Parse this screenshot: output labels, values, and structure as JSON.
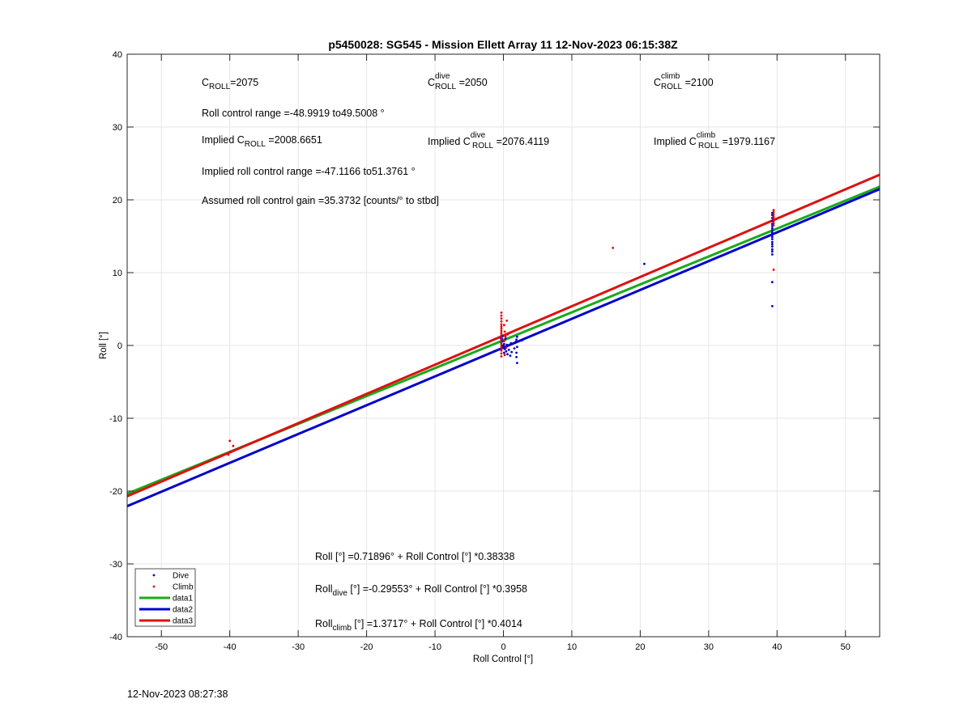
{
  "chart_data": {
    "type": "scatter",
    "title": "p5450028: SG545 - Mission Ellett Array 11 12-Nov-2023 06:15:38Z",
    "xlabel": "Roll Control [°]",
    "ylabel": "Roll [°]",
    "xlim": [
      -55,
      55
    ],
    "ylim": [
      -40,
      40
    ],
    "xticks": [
      -50,
      -40,
      -30,
      -20,
      -10,
      0,
      10,
      20,
      30,
      40,
      50
    ],
    "yticks": [
      -40,
      -30,
      -20,
      -10,
      0,
      10,
      20,
      30,
      40
    ],
    "grid": true,
    "legend_position": "bottom-left",
    "series": [
      {
        "name": "Dive",
        "kind": "points",
        "color": "#0000cc",
        "points": [
          [
            -0.3,
            0.4
          ],
          [
            -0.2,
            -0.1
          ],
          [
            -0.1,
            0.6
          ],
          [
            0.0,
            -0.3
          ],
          [
            0.1,
            0.2
          ],
          [
            0.2,
            -0.5
          ],
          [
            0.3,
            0.9
          ],
          [
            0.4,
            -0.8
          ],
          [
            0.5,
            0.1
          ],
          [
            -0.4,
            1.0
          ],
          [
            0.6,
            -1.2
          ],
          [
            0.0,
            0.0
          ],
          [
            0.8,
            -0.6
          ],
          [
            1.0,
            -1.4
          ],
          [
            1.1,
            0.3
          ],
          [
            1.2,
            -0.9
          ],
          [
            1.6,
            -0.4
          ],
          [
            1.8,
            0.5
          ],
          [
            1.9,
            -1.6
          ],
          [
            2.0,
            -2.4
          ],
          [
            2.0,
            1.2
          ],
          [
            1.9,
            0.8
          ],
          [
            2.0,
            -0.2
          ],
          [
            1.9,
            -1.0
          ],
          [
            2.7,
            0.7
          ],
          [
            -0.2,
            0.9
          ],
          [
            0.1,
            -1.0
          ],
          [
            -0.1,
            1.3
          ],
          [
            20.6,
            11.2
          ],
          [
            39.3,
            18.2
          ],
          [
            39.3,
            17.9
          ],
          [
            39.3,
            17.5
          ],
          [
            39.3,
            17.1
          ],
          [
            39.3,
            16.7
          ],
          [
            39.3,
            16.4
          ],
          [
            39.3,
            16.1
          ],
          [
            39.3,
            15.8
          ],
          [
            39.3,
            15.5
          ],
          [
            39.3,
            15.2
          ],
          [
            39.3,
            14.9
          ],
          [
            39.3,
            14.6
          ],
          [
            39.3,
            14.2
          ],
          [
            39.3,
            13.9
          ],
          [
            39.3,
            13.6
          ],
          [
            39.3,
            13.2
          ],
          [
            39.3,
            12.9
          ],
          [
            39.3,
            12.5
          ],
          [
            39.3,
            8.7
          ],
          [
            39.3,
            5.4
          ]
        ]
      },
      {
        "name": "Climb",
        "kind": "points",
        "color": "#e00000",
        "points": [
          [
            -40.0,
            -13.1
          ],
          [
            -39.5,
            -13.8
          ],
          [
            -39.9,
            -14.6
          ],
          [
            -40.2,
            -15.0
          ],
          [
            -0.3,
            4.5
          ],
          [
            -0.3,
            4.1
          ],
          [
            -0.3,
            3.7
          ],
          [
            -0.3,
            3.3
          ],
          [
            -0.3,
            2.9
          ],
          [
            -0.3,
            2.6
          ],
          [
            -0.3,
            2.3
          ],
          [
            -0.3,
            2.0
          ],
          [
            -0.3,
            1.7
          ],
          [
            -0.3,
            1.4
          ],
          [
            -0.3,
            1.1
          ],
          [
            -0.3,
            0.8
          ],
          [
            -0.3,
            0.5
          ],
          [
            -0.3,
            0.2
          ],
          [
            -0.3,
            -0.1
          ],
          [
            -0.3,
            -0.4
          ],
          [
            -0.3,
            -0.7
          ],
          [
            -0.3,
            -1.1
          ],
          [
            -0.3,
            -1.5
          ],
          [
            0.1,
            2.8
          ],
          [
            0.2,
            1.9
          ],
          [
            0.3,
            1.2
          ],
          [
            0.1,
            0.6
          ],
          [
            0.4,
            -0.3
          ],
          [
            0.5,
            3.4
          ],
          [
            0.6,
            1.5
          ],
          [
            0.2,
            -1.3
          ],
          [
            16.0,
            13.4
          ],
          [
            39.5,
            18.6
          ],
          [
            39.5,
            18.3
          ],
          [
            39.5,
            18.0
          ],
          [
            39.5,
            17.7
          ],
          [
            39.5,
            17.4
          ],
          [
            39.5,
            17.1
          ],
          [
            39.5,
            16.8
          ],
          [
            39.5,
            16.5
          ],
          [
            39.5,
            10.4
          ]
        ]
      },
      {
        "name": "data1",
        "kind": "line",
        "color": "#1aaa1a",
        "intercept": 0.71896,
        "slope": 0.38338
      },
      {
        "name": "data2",
        "kind": "line",
        "color": "#0000cc",
        "intercept": -0.29553,
        "slope": 0.3958
      },
      {
        "name": "data3",
        "kind": "line",
        "color": "#dd1111",
        "intercept": 1.3717,
        "slope": 0.4014
      }
    ],
    "annotations": {
      "c_roll": {
        "prefix": "C",
        "sub": "ROLL",
        "value": "=2075"
      },
      "c_roll_dive": {
        "prefix": "C",
        "sup": "dive",
        "sub": "ROLL",
        "value": " =2050"
      },
      "c_roll_climb": {
        "prefix": "C",
        "sup": "climb",
        "sub": "ROLL",
        "value": " =2100"
      },
      "roll_range": "Roll control range =-48.9919 to49.5008 °",
      "implied_c_roll": {
        "prefix": "Implied C",
        "sub": "ROLL",
        "value": " =2008.6651"
      },
      "implied_c_roll_dive": {
        "prefix": "Implied C",
        "sup": "dive",
        "sub": "ROLL",
        "value": " =2076.4119"
      },
      "implied_c_roll_climb": {
        "prefix": "Implied C",
        "sup": "climb",
        "sub": "ROLL",
        "value": " =1979.1167"
      },
      "implied_range": "Implied roll control range =-47.1166 to51.3761 °",
      "gain": "Assumed roll control gain =35.3732 [counts/° to stbd]",
      "eq_all": "Roll [°] =0.71896° + Roll Control [°] *0.38338",
      "eq_dive": {
        "prefix": "Roll",
        "sub": "dive",
        "value": " [°] =-0.29553° + Roll Control [°] *0.3958"
      },
      "eq_climb": {
        "prefix": "Roll",
        "sub": "climb",
        "value": " [°] =1.3717° + Roll Control [°] *0.4014"
      }
    }
  },
  "footer_timestamp": "12-Nov-2023 08:27:38"
}
